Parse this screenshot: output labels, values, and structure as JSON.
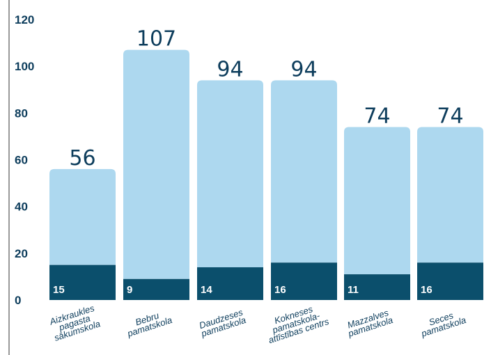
{
  "chart_data": {
    "type": "bar",
    "stacked": true,
    "categories": [
      [
        "Aizkraukles",
        "pagasta",
        "sākumskola"
      ],
      [
        "Bebru",
        "pamatskola"
      ],
      [
        "Daudzeses",
        "pamatskola"
      ],
      [
        "Kokneses",
        "pamatskola-",
        "attīstības centrs"
      ],
      [
        "Mazzalves",
        "pamatskola"
      ],
      [
        "Seces",
        "pamatskola"
      ]
    ],
    "totals": [
      56,
      107,
      94,
      94,
      74,
      74
    ],
    "series": [
      {
        "values": [
          15,
          9,
          14,
          16,
          11,
          16
        ],
        "color": "#0b4f6c"
      },
      {
        "values": [
          41,
          98,
          80,
          78,
          63,
          58
        ],
        "color": "#add8ef"
      }
    ],
    "ylim": [
      0,
      120
    ],
    "yticks": [
      0,
      20,
      40,
      60,
      80,
      100,
      120
    ],
    "grid": false,
    "title": "",
    "xlabel": "",
    "ylabel": ""
  }
}
